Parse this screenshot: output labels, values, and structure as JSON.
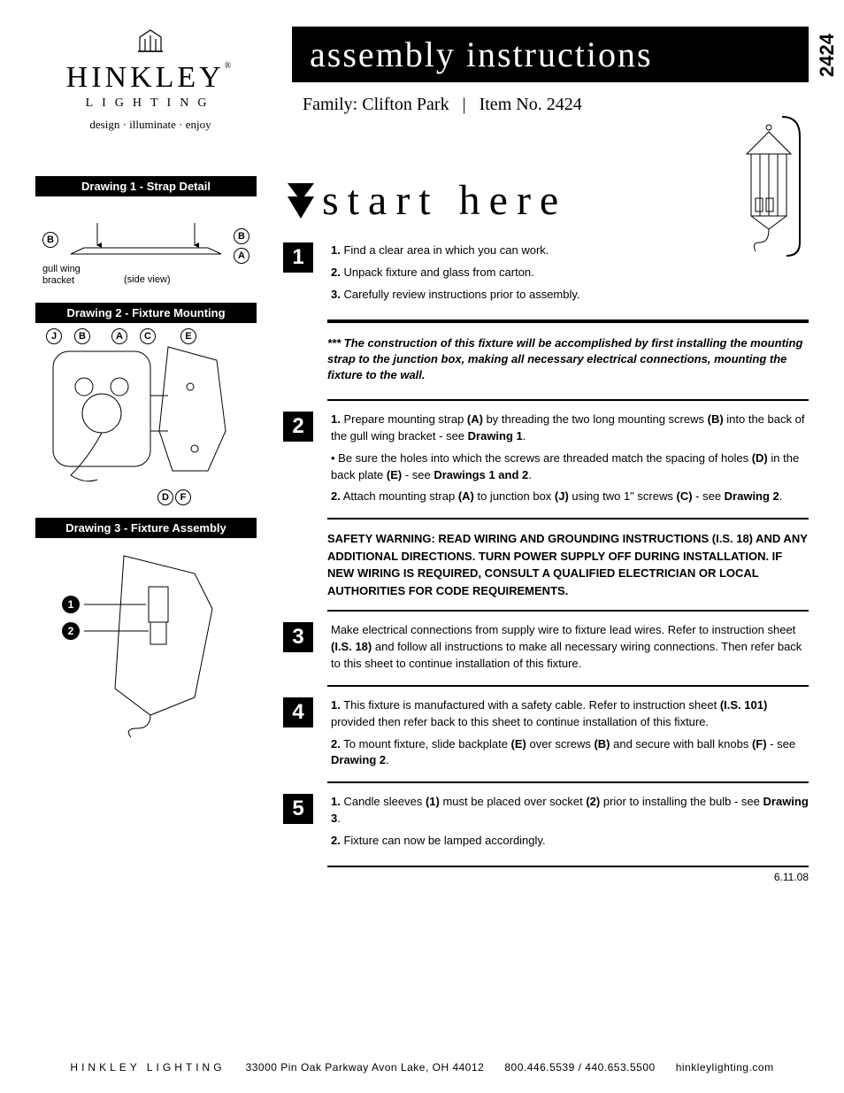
{
  "logo": {
    "name": "HINKLEY",
    "subtitle": "LIGHTING",
    "tagline": "design · illuminate · enjoy",
    "reg": "®"
  },
  "title": "assembly instructions",
  "product_number": "2424",
  "family_label": "Family:",
  "family_name": "Clifton Park",
  "item_label": "Item No.",
  "item_no": "2424",
  "start_here": "start here",
  "drawings": {
    "d1": {
      "title": "Drawing 1 - Strap Detail",
      "gull": "gull wing",
      "bracket": "bracket",
      "side": "(side view)",
      "labels": [
        "B",
        "B",
        "A"
      ]
    },
    "d2": {
      "title": "Drawing 2 - Fixture Mounting",
      "labels_top": [
        "J",
        "B",
        "A",
        "C",
        "E"
      ],
      "labels_bottom": [
        "D",
        "F"
      ]
    },
    "d3": {
      "title": "Drawing 3 - Fixture Assembly",
      "labels": [
        "1",
        "2"
      ]
    }
  },
  "steps": {
    "s1": {
      "num": "1",
      "lines": [
        "<b>1.</b> Find a clear area in which you can work.",
        "<b>2.</b> Unpack fixture and glass from carton.",
        "<b>3.</b> Carefully review instructions prior to assembly."
      ]
    },
    "construction": "*** The construction of this fixture will be accomplished by first installing the mounting strap to the junction box, making all necessary electrical connections, mounting the fixture to the wall.",
    "s2": {
      "num": "2",
      "lines": [
        "<b>1.</b> Prepare mounting strap <b>(A)</b> by threading the two long mounting screws <b>(B)</b> into the back of the gull wing bracket - see <b>Drawing 1</b>.",
        "• Be sure the holes into which the screws are threaded match the spacing of holes <b>(D)</b> in the back plate <b>(E)</b> - see <b>Drawings 1 and 2</b>.",
        "<b>2.</b> Attach mounting strap <b>(A)</b> to junction box <b>(J)</b> using two 1\" screws <b>(C)</b>  - see <b>Drawing 2</b>."
      ]
    },
    "safety": "SAFETY WARNING: READ WIRING AND GROUNDING INSTRUCTIONS (I.S. 18) AND ANY ADDITIONAL DIRECTIONS. TURN POWER SUPPLY OFF DURING INSTALLATION. IF NEW WIRING IS REQUIRED, CONSULT A QUALIFIED ELECTRICIAN OR LOCAL AUTHORITIES FOR CODE REQUIREMENTS.",
    "s3": {
      "num": "3",
      "lines": [
        "Make electrical connections from supply wire to fixture lead wires. Refer to instruction sheet <b>(I.S. 18)</b> and follow all instructions to make all necessary wiring connections. Then refer back to this sheet to continue installation of this fixture."
      ]
    },
    "s4": {
      "num": "4",
      "lines": [
        "<b>1.</b> This fixture is manufactured with a safety cable. Refer to  instruction sheet <b>(I.S. 101)</b> provided then refer back to this sheet to continue installation of this fixture.",
        "<b>2.</b> To mount fixture, slide backplate <b>(E)</b> over screws <b>(B)</b> and secure with ball knobs <b>(F)</b> - see <b>Drawing 2</b>."
      ]
    },
    "s5": {
      "num": "5",
      "lines": [
        "<b>1.</b> Candle sleeves <b>(1)</b> must be placed over socket <b>(2)</b> prior to installing the bulb - see <b>Drawing 3</b>.",
        "<b>2.</b> Fixture can now be lamped accordingly."
      ]
    }
  },
  "date": "6.11.08",
  "footer": {
    "brand": "HINKLEY LIGHTING",
    "address": "33000 Pin Oak Parkway   Avon Lake, OH  44012",
    "phones": "800.446.5539 / 440.653.5500",
    "site": "hinkleylighting.com"
  }
}
